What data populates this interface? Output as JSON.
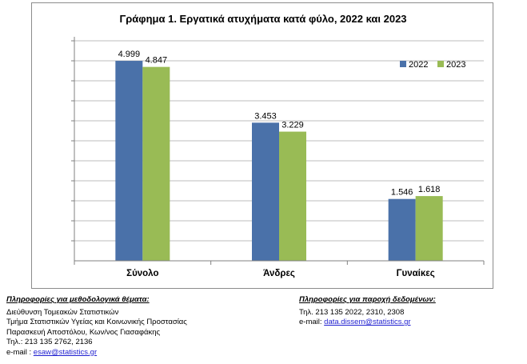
{
  "chart_data": {
    "type": "bar",
    "title": "Γράφημα 1. Εργατικά ατυχήματα κατά φύλο, 2022 και 2023",
    "categories": [
      "Σύνολο",
      "Άνδρες",
      "Γυναίκες"
    ],
    "series": [
      {
        "name": "2022",
        "values": [
          4999,
          3453,
          1546
        ],
        "labels": [
          "4.999",
          "3.453",
          "1.546"
        ],
        "color": "#4a71a9"
      },
      {
        "name": "2023",
        "values": [
          4847,
          3229,
          1618
        ],
        "labels": [
          "4.847",
          "3.229",
          "1.618"
        ],
        "color": "#99bb55"
      }
    ],
    "ylim": [
      0,
      5600
    ],
    "y_gridline_step": 500,
    "grid": true,
    "legend": "top-right",
    "show_y_tick_labels": false
  },
  "footer": {
    "left": {
      "heading": "Πληροφορίες για μεθοδολογικά θέματα:",
      "line1": "Διεύθυνση Τομεακών Στατιστικών",
      "line2": "Τμήμα Στατιστικών Υγείας και Κοινωνικής Προστασίας",
      "line3": "Παρασκευή Αποστόλου, Κων/νος Γιασαφάκης",
      "phone": "Τηλ.: 213 135 2762, 2136",
      "email_label": "e-mail : ",
      "email": "esaw@statistics.gr"
    },
    "right": {
      "heading": "Πληροφορίες για παροχή δεδομένων:",
      "phone": "Τηλ. 213 135 2022, 2310, 2308",
      "email_label": "e-mail: ",
      "email": "data.dissem@statistics.gr"
    }
  }
}
